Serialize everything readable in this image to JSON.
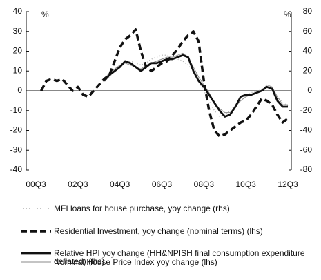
{
  "chart_data": {
    "type": "line",
    "ylabel": "%",
    "y2label": "%",
    "categories": [
      "00Q3",
      null,
      null,
      null,
      null,
      null,
      null,
      null,
      "02Q3",
      null,
      null,
      null,
      null,
      null,
      null,
      null,
      "04Q3",
      null,
      null,
      null,
      null,
      null,
      null,
      null,
      "06Q3",
      null,
      null,
      null,
      null,
      null,
      null,
      null,
      "08Q3",
      null,
      null,
      null,
      null,
      null,
      null,
      null,
      "10Q3",
      null,
      null,
      null,
      null,
      null,
      null,
      null,
      "12Q3"
    ],
    "ylim": [
      -40,
      40
    ],
    "yticks": [
      -40,
      -30,
      -20,
      -10,
      0,
      10,
      20,
      30,
      40
    ],
    "y2lim": [
      -80,
      80
    ],
    "y2ticks": [
      -80,
      -60,
      -40,
      -20,
      0,
      20,
      40,
      60,
      80
    ],
    "series": [
      {
        "name": "MFI loans for house purchase, yoy change (rhs)",
        "color": "#b0b0b0",
        "style": "dotted",
        "axis": "y2",
        "values": [
          null,
          null,
          null,
          null,
          null,
          null,
          null,
          null,
          null,
          null,
          null,
          null,
          null,
          10,
          14,
          20,
          26,
          30,
          30,
          28,
          26,
          28,
          32,
          34,
          36,
          36,
          34,
          32,
          30,
          26,
          20,
          10,
          0,
          -10,
          -20,
          -26,
          -24,
          -20,
          -15,
          -10,
          -5,
          -2,
          0,
          2,
          4,
          0,
          -5,
          -12,
          -15
        ]
      },
      {
        "name": "Residential Investment, yoy change (nominal terms) (lhs)",
        "color": "#111111",
        "style": "dashed",
        "values": [
          null,
          0,
          5,
          6,
          5,
          6,
          3,
          0,
          2,
          -2,
          -3,
          0,
          3,
          6,
          8,
          15,
          22,
          26,
          28,
          31,
          20,
          12,
          10,
          12,
          14,
          15,
          18,
          21,
          25,
          28,
          30,
          25,
          5,
          -10,
          -20,
          -23,
          -22,
          -20,
          -18,
          -16,
          -15,
          -12,
          -8,
          -4,
          -5,
          -7,
          -12,
          -16,
          -14
        ]
      },
      {
        "name": "Relative HPI yoy change (HH&NPISH final consumption expenditure deflated) (lhs)",
        "color": "#111111",
        "style": "solid",
        "values": [
          null,
          null,
          null,
          null,
          null,
          null,
          null,
          null,
          null,
          null,
          null,
          null,
          null,
          5,
          8,
          10,
          12,
          15,
          14,
          12,
          10,
          12,
          14,
          14,
          15,
          16,
          16,
          17,
          18,
          17,
          10,
          5,
          2,
          -2,
          -6,
          -10,
          -13,
          -12,
          -8,
          -3,
          -2,
          -2,
          -1,
          0,
          2,
          1,
          -5,
          -8,
          -8
        ]
      },
      {
        "name": "Nominal House Price Index yoy change (lhs)",
        "color": "#8a8a8a",
        "style": "thin",
        "values": [
          null,
          null,
          null,
          null,
          null,
          null,
          null,
          null,
          null,
          null,
          null,
          null,
          null,
          6,
          9,
          11,
          13,
          14,
          13,
          12,
          11,
          13,
          14,
          15,
          16,
          17,
          17,
          18,
          19,
          17,
          12,
          7,
          3,
          -1,
          -6,
          -9,
          -11,
          -11,
          -8,
          -5,
          -3,
          -2,
          -1,
          0,
          3,
          2,
          -3,
          -7,
          -7
        ]
      }
    ]
  }
}
